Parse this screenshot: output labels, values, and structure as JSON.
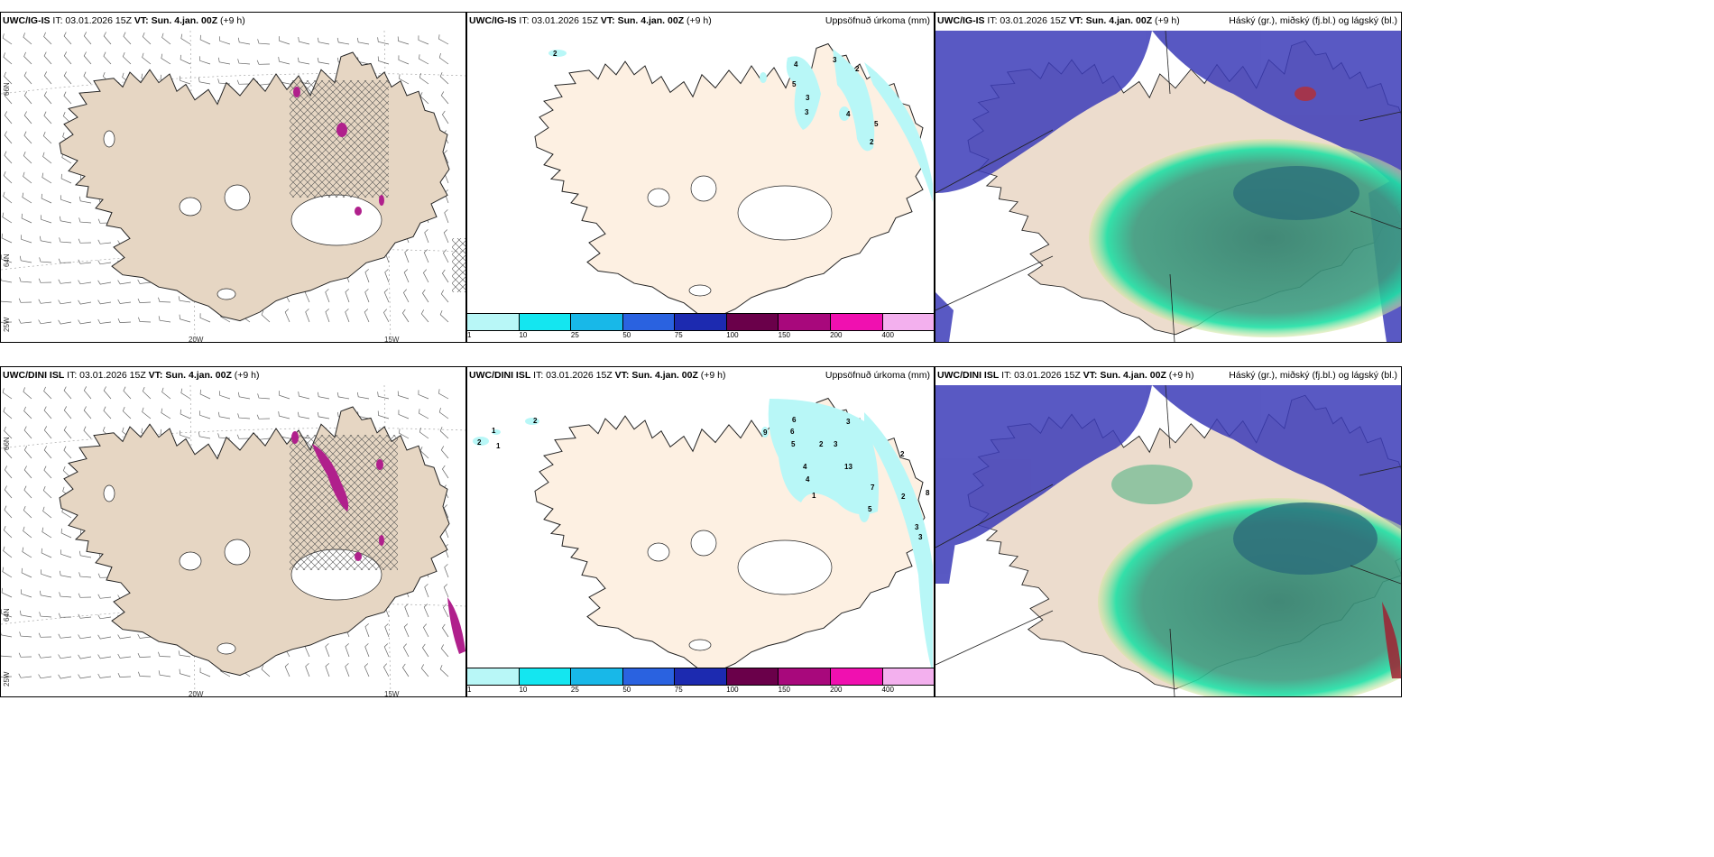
{
  "panels": [
    {
      "model": "UWC/IG-IS",
      "it": "IT: 03.01.2026 15Z",
      "vt": "VT: Sun. 4.jan. 00Z",
      "lead": "(+9 h)",
      "right_title": ""
    },
    {
      "model": "UWC/IG-IS",
      "it": "IT: 03.01.2026 15Z",
      "vt": "VT: Sun. 4.jan. 00Z",
      "lead": "(+9 h)",
      "right_title": "Uppsöfnuð úrkoma (mm)"
    },
    {
      "model": "UWC/IG-IS",
      "it": "IT: 03.01.2026 15Z",
      "vt": "VT: Sun. 4.jan. 00Z",
      "lead": "(+9 h)",
      "right_title": "Háský (gr.), miðský (fj.bl.) og lágský (bl.)"
    },
    {
      "model": "UWC/DINI ISL",
      "it": "IT: 03.01.2026 15Z",
      "vt": "VT: Sun. 4.jan. 00Z",
      "lead": "(+9 h)",
      "right_title": ""
    },
    {
      "model": "UWC/DINI ISL",
      "it": "IT: 03.01.2026 15Z",
      "vt": "VT: Sun. 4.jan. 00Z",
      "lead": "(+9 h)",
      "right_title": "Uppsöfnuð úrkoma (mm)"
    },
    {
      "model": "UWC/DINI ISL",
      "it": "IT: 03.01.2026 15Z",
      "vt": "VT: Sun. 4.jan. 00Z",
      "lead": "(+9 h)",
      "right_title": "Háský (gr.), miðský (fj.bl.) og lágský (bl.)"
    }
  ],
  "wind_axes": {
    "lat_66": "66N",
    "lat_64": "64N",
    "lon_25": "25W",
    "lon_20": "20W",
    "lon_15": "15W"
  },
  "colorbar": {
    "labels": [
      "1",
      "10",
      "25",
      "50",
      "75",
      "100",
      "150",
      "200",
      "400"
    ],
    "colors": [
      "#b8f7f7",
      "#14e6f0",
      "#18b8e8",
      "#2a62e0",
      "#1c2ab0",
      "#6a004a",
      "#a8087c",
      "#f010b0",
      "#f3b0ee"
    ]
  },
  "precip_labels_top": [
    "2",
    "4",
    "5",
    "3",
    "3",
    "3",
    "2",
    "4",
    "5",
    "2"
  ],
  "precip_labels_bottom": [
    "2",
    "1",
    "1",
    "2",
    "6",
    "6",
    "9",
    "5",
    "2",
    "3",
    "3",
    "4",
    "13",
    "4",
    "1",
    "2",
    "8",
    "7",
    "2",
    "5",
    "3",
    "3"
  ],
  "colors": {
    "land_wind": "#e6d6c3",
    "land_precip": "#fdf0e2",
    "cloud_high": "#1fd8a0",
    "cloud_mid": "#2a74a0",
    "cloud_low": "#3c3cb8"
  }
}
